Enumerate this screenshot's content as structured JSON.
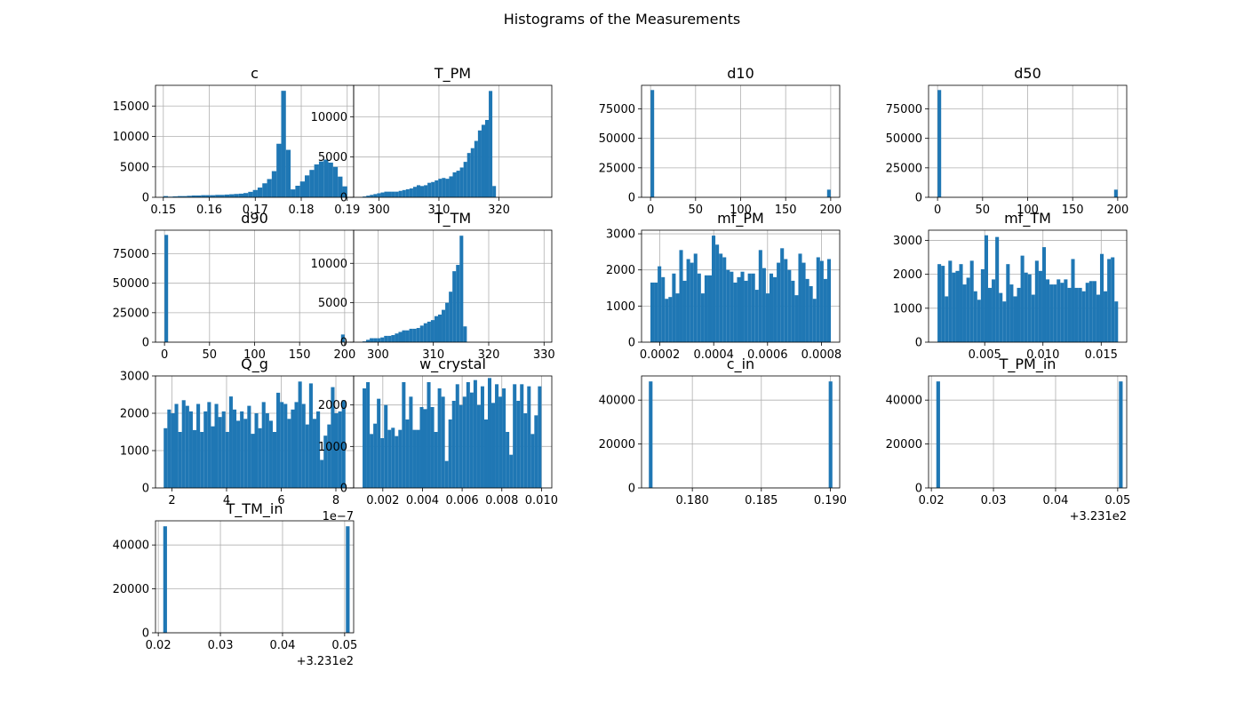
{
  "figure": {
    "title": "Histograms of the Measurements"
  },
  "style": {
    "bar_color": "#1f77b4",
    "grid_color": "#b0b0b0",
    "axis_color": "#000000"
  },
  "chart_data": [
    {
      "type": "bar",
      "title": "c",
      "grid": true,
      "xlim": [
        0.1483,
        0.1914
      ],
      "ylim": [
        0,
        18400
      ],
      "xticks": [
        0.15,
        0.16,
        0.17,
        0.18,
        0.19
      ],
      "xtick_labels": [
        "0.15",
        "0.16",
        "0.17",
        "0.18",
        "0.19"
      ],
      "yticks": [
        0,
        5000,
        10000,
        15000
      ],
      "ytick_labels": [
        "0",
        "5000",
        "10000",
        "15000"
      ],
      "bin_edges": [
        0.15,
        0.19
      ],
      "counts": [
        200,
        100,
        150,
        200,
        200,
        250,
        300,
        300,
        350,
        350,
        350,
        400,
        400,
        450,
        500,
        550,
        600,
        700,
        900,
        1200,
        1600,
        2300,
        3000,
        4300,
        8800,
        17500,
        7800,
        1300,
        1900,
        2600,
        3600,
        4500,
        5400,
        5900,
        6200,
        5700,
        5000,
        3400,
        1800
      ]
    },
    {
      "type": "bar",
      "title": "T_PM",
      "grid": true,
      "xlim": [
        295.8,
        328.8
      ],
      "ylim": [
        0,
        13900
      ],
      "xticks": [
        300,
        310,
        320
      ],
      "xtick_labels": [
        "300",
        "310",
        "320"
      ],
      "yticks": [
        0,
        5000,
        10000
      ],
      "ytick_labels": [
        "0",
        "5000",
        "10000"
      ],
      "bin_edges": [
        297.3,
        327.3
      ],
      "counts": [
        100,
        200,
        300,
        400,
        500,
        600,
        700,
        700,
        700,
        700,
        800,
        900,
        1000,
        1100,
        1300,
        1500,
        1400,
        1500,
        1800,
        1900,
        2100,
        2300,
        2400,
        2300,
        2600,
        3100,
        3300,
        3700,
        4400,
        5500,
        6100,
        7000,
        8300,
        9000,
        9600,
        13200,
        1400,
        0,
        0,
        0,
        0,
        0,
        0,
        0,
        0,
        0,
        0,
        0,
        0,
        10
      ]
    },
    {
      "type": "bar",
      "title": "d10",
      "grid": true,
      "xlim": [
        -10,
        210
      ],
      "ylim": [
        0,
        95000
      ],
      "xticks": [
        0,
        50,
        100,
        150,
        200
      ],
      "xtick_labels": [
        "0",
        "50",
        "100",
        "150",
        "200"
      ],
      "yticks": [
        0,
        25000,
        50000,
        75000
      ],
      "ytick_labels": [
        "0",
        "25000",
        "50000",
        "75000"
      ],
      "bin_edges": [
        0,
        200
      ],
      "counts": [
        91000,
        0,
        0,
        0,
        0,
        0,
        0,
        0,
        0,
        0,
        0,
        0,
        0,
        0,
        0,
        0,
        0,
        0,
        0,
        0,
        0,
        0,
        0,
        0,
        0,
        0,
        0,
        0,
        0,
        0,
        0,
        0,
        0,
        0,
        0,
        0,
        0,
        0,
        0,
        0,
        0,
        0,
        0,
        0,
        0,
        0,
        0,
        0,
        0,
        6500
      ]
    },
    {
      "type": "bar",
      "title": "d50",
      "grid": true,
      "xlim": [
        -10,
        210
      ],
      "ylim": [
        0,
        95000
      ],
      "xticks": [
        0,
        50,
        100,
        150,
        200
      ],
      "xtick_labels": [
        "0",
        "50",
        "100",
        "150",
        "200"
      ],
      "yticks": [
        0,
        25000,
        50000,
        75000
      ],
      "ytick_labels": [
        "0",
        "25000",
        "50000",
        "75000"
      ],
      "bin_edges": [
        0,
        200
      ],
      "counts": [
        91000,
        0,
        0,
        0,
        0,
        0,
        0,
        0,
        0,
        0,
        0,
        0,
        0,
        0,
        0,
        0,
        0,
        0,
        0,
        0,
        0,
        0,
        0,
        0,
        0,
        0,
        0,
        0,
        0,
        0,
        0,
        0,
        0,
        0,
        0,
        0,
        0,
        0,
        0,
        0,
        0,
        0,
        0,
        0,
        0,
        0,
        0,
        0,
        0,
        6500
      ]
    },
    {
      "type": "bar",
      "title": "d90",
      "grid": true,
      "xlim": [
        -10,
        210
      ],
      "ylim": [
        0,
        95000
      ],
      "xticks": [
        0,
        50,
        100,
        150,
        200
      ],
      "xtick_labels": [
        "0",
        "50",
        "100",
        "150",
        "200"
      ],
      "yticks": [
        0,
        25000,
        50000,
        75000
      ],
      "ytick_labels": [
        "0",
        "25000",
        "50000",
        "75000"
      ],
      "bin_edges": [
        0,
        200
      ],
      "counts": [
        91000,
        0,
        0,
        0,
        0,
        0,
        0,
        0,
        0,
        0,
        0,
        0,
        0,
        0,
        0,
        0,
        0,
        0,
        0,
        0,
        0,
        0,
        0,
        0,
        0,
        0,
        0,
        0,
        0,
        0,
        0,
        0,
        0,
        0,
        0,
        0,
        0,
        0,
        0,
        0,
        0,
        0,
        0,
        0,
        0,
        0,
        0,
        0,
        0,
        6500
      ]
    },
    {
      "type": "bar",
      "title": "T_TM",
      "grid": true,
      "xlim": [
        295.6,
        331.4
      ],
      "ylim": [
        0,
        14200
      ],
      "xticks": [
        300,
        310,
        320,
        330
      ],
      "xtick_labels": [
        "300",
        "310",
        "320",
        "330"
      ],
      "yticks": [
        0,
        5000,
        10000
      ],
      "ytick_labels": [
        "0",
        "5000",
        "10000"
      ],
      "bin_edges": [
        297.2,
        329.7
      ],
      "counts": [
        100,
        300,
        500,
        500,
        500,
        600,
        800,
        800,
        900,
        1100,
        1300,
        1500,
        1500,
        1700,
        1700,
        1800,
        2100,
        2400,
        2600,
        2800,
        3300,
        3500,
        4100,
        5000,
        6400,
        9000,
        9800,
        13500,
        2000,
        0,
        0,
        0,
        0,
        0,
        0,
        0,
        0,
        0,
        0,
        0,
        0,
        0,
        0,
        0,
        0,
        0,
        0,
        0,
        0,
        10
      ]
    },
    {
      "type": "bar",
      "title": "mf_PM",
      "grid": true,
      "xlim": [
        0.000132,
        0.000868
      ],
      "ylim": [
        0,
        3100
      ],
      "xticks": [
        0.0002,
        0.0004,
        0.0006,
        0.0008
      ],
      "xtick_labels": [
        "0.0002",
        "0.0004",
        "0.0006",
        "0.0008"
      ],
      "yticks": [
        0,
        1000,
        2000,
        3000
      ],
      "ytick_labels": [
        "0",
        "1000",
        "2000",
        "3000"
      ],
      "bin_edges": [
        0.000165,
        0.000835
      ],
      "counts": [
        1650,
        1650,
        2100,
        1800,
        1200,
        1250,
        1900,
        1350,
        2550,
        1700,
        2300,
        2200,
        2450,
        1900,
        1350,
        1850,
        1850,
        2950,
        2700,
        2450,
        2350,
        2000,
        1950,
        1650,
        1800,
        1950,
        1700,
        1900,
        1900,
        1450,
        2550,
        2050,
        1350,
        1900,
        1800,
        2200,
        2600,
        2300,
        2000,
        1700,
        1300,
        2450,
        2200,
        1750,
        1550,
        1200,
        2350,
        2250,
        1750,
        2300
      ]
    },
    {
      "type": "bar",
      "title": "mf_TM",
      "grid": true,
      "xlim": [
        0.00018,
        0.01719
      ],
      "ylim": [
        0,
        3300
      ],
      "xticks": [
        0.005,
        0.01,
        0.015
      ],
      "xtick_labels": [
        "0.005",
        "0.010",
        "0.015"
      ],
      "yticks": [
        0,
        1000,
        2000,
        3000
      ],
      "ytick_labels": [
        "0",
        "1000",
        "2000",
        "3000"
      ],
      "bin_edges": [
        0.00095,
        0.01645
      ],
      "counts": [
        2300,
        2250,
        1350,
        2400,
        2050,
        2100,
        2300,
        1700,
        1900,
        2400,
        1500,
        1250,
        2150,
        3150,
        1600,
        1850,
        3100,
        1450,
        1200,
        2300,
        1700,
        1350,
        1600,
        2550,
        2050,
        2000,
        1400,
        2400,
        2100,
        2800,
        1850,
        1700,
        1700,
        1850,
        1750,
        1850,
        1600,
        2450,
        1600,
        1600,
        1500,
        1750,
        1800,
        1800,
        1400,
        2600,
        1500,
        2450,
        2500,
        1200
      ]
    },
    {
      "type": "bar",
      "title": "Q_g",
      "grid": true,
      "xlim": [
        1.4e-07,
        8.65e-07
      ],
      "ylim": [
        0,
        3000
      ],
      "offset_text": "1e−7",
      "xticks": [
        2e-07,
        4e-07,
        6e-07,
        8e-07
      ],
      "xtick_labels": [
        "2",
        "4",
        "6",
        "8"
      ],
      "yticks": [
        0,
        1000,
        2000,
        3000
      ],
      "ytick_labels": [
        "0",
        "1000",
        "2000",
        "3000"
      ],
      "bin_edges": [
        1.7e-07,
        8.35e-07
      ],
      "counts": [
        1600,
        2100,
        2000,
        2250,
        1500,
        2350,
        2200,
        2050,
        1550,
        2250,
        1500,
        2050,
        2300,
        1650,
        2250,
        1900,
        2050,
        1500,
        2450,
        2100,
        1800,
        2050,
        1850,
        2200,
        1450,
        2000,
        1600,
        2300,
        2000,
        1800,
        1500,
        2550,
        2300,
        2250,
        1850,
        2100,
        2300,
        2850,
        2250,
        1700,
        2800,
        1850,
        2050,
        750,
        1400,
        1700,
        2700,
        2000,
        2050,
        2350
      ]
    },
    {
      "type": "bar",
      "title": "w_crystal",
      "grid": true,
      "xlim": [
        0.00053,
        0.01052
      ],
      "ylim": [
        0,
        2700
      ],
      "xticks": [
        0.002,
        0.004,
        0.006,
        0.008,
        0.01
      ],
      "xtick_labels": [
        "0.002",
        "0.004",
        "0.006",
        "0.008",
        "0.010"
      ],
      "yticks": [
        0,
        1000,
        2000
      ],
      "ytick_labels": [
        "0",
        "1000",
        "2000"
      ],
      "bin_edges": [
        0.00098,
        0.01
      ],
      "counts": [
        2400,
        2550,
        1300,
        1550,
        2150,
        1200,
        2000,
        1400,
        1450,
        1250,
        1400,
        2550,
        1650,
        2200,
        1400,
        1400,
        1950,
        1900,
        2550,
        1950,
        1350,
        2400,
        2200,
        650,
        1650,
        2100,
        2500,
        2000,
        2200,
        2550,
        2300,
        2600,
        2000,
        2450,
        1650,
        2650,
        2050,
        2500,
        2200,
        2400,
        1350,
        800,
        2500,
        2100,
        2500,
        1800,
        2450,
        1300,
        1750,
        2450
      ]
    },
    {
      "type": "bar",
      "title": "c_in",
      "grid": true,
      "xlim": [
        0.17632,
        0.19068
      ],
      "ylim": [
        0,
        51000
      ],
      "xticks": [
        0.18,
        0.185,
        0.19
      ],
      "xtick_labels": [
        "0.180",
        "0.185",
        "0.190"
      ],
      "yticks": [
        0,
        20000,
        40000
      ],
      "ytick_labels": [
        "0",
        "20000",
        "40000"
      ],
      "bin_edges": [
        0.17685,
        0.19015
      ],
      "counts": [
        48500,
        0,
        0,
        0,
        0,
        0,
        0,
        0,
        0,
        0,
        0,
        0,
        0,
        0,
        0,
        0,
        0,
        0,
        0,
        0,
        0,
        0,
        0,
        0,
        0,
        0,
        0,
        0,
        0,
        0,
        0,
        0,
        0,
        0,
        0,
        0,
        0,
        0,
        0,
        0,
        0,
        0,
        0,
        0,
        0,
        0,
        0,
        0,
        0,
        48500
      ]
    },
    {
      "type": "bar",
      "title": "T_PM_in",
      "grid": true,
      "xlim": [
        0.01955,
        0.05145
      ],
      "ylim": [
        0,
        51000
      ],
      "offset_text": "+3.231e2",
      "xticks": [
        0.02,
        0.03,
        0.04,
        0.05
      ],
      "xtick_labels": [
        "0.02",
        "0.03",
        "0.04",
        "0.05"
      ],
      "yticks": [
        0,
        20000,
        40000
      ],
      "ytick_labels": [
        "0",
        "20000",
        "40000"
      ],
      "bin_edges": [
        0.0208,
        0.0508
      ],
      "counts": [
        48500,
        0,
        0,
        0,
        0,
        0,
        0,
        0,
        0,
        0,
        0,
        0,
        0,
        0,
        0,
        0,
        0,
        0,
        0,
        0,
        0,
        0,
        0,
        0,
        0,
        0,
        0,
        0,
        0,
        0,
        0,
        0,
        0,
        0,
        0,
        0,
        0,
        0,
        0,
        0,
        0,
        0,
        0,
        0,
        0,
        0,
        0,
        0,
        0,
        48500
      ]
    },
    {
      "type": "bar",
      "title": "T_TM_in",
      "grid": true,
      "xlim": [
        0.01955,
        0.05145
      ],
      "ylim": [
        0,
        51000
      ],
      "offset_text": "+3.231e2",
      "xticks": [
        0.02,
        0.03,
        0.04,
        0.05
      ],
      "xtick_labels": [
        "0.02",
        "0.03",
        "0.04",
        "0.05"
      ],
      "yticks": [
        0,
        20000,
        40000
      ],
      "ytick_labels": [
        "0",
        "20000",
        "40000"
      ],
      "bin_edges": [
        0.0208,
        0.0508
      ],
      "counts": [
        48500,
        0,
        0,
        0,
        0,
        0,
        0,
        0,
        0,
        0,
        0,
        0,
        0,
        0,
        0,
        0,
        0,
        0,
        0,
        0,
        0,
        0,
        0,
        0,
        0,
        0,
        0,
        0,
        0,
        0,
        0,
        0,
        0,
        0,
        0,
        0,
        0,
        0,
        0,
        0,
        0,
        0,
        0,
        0,
        0,
        0,
        0,
        0,
        0,
        48500
      ]
    }
  ]
}
